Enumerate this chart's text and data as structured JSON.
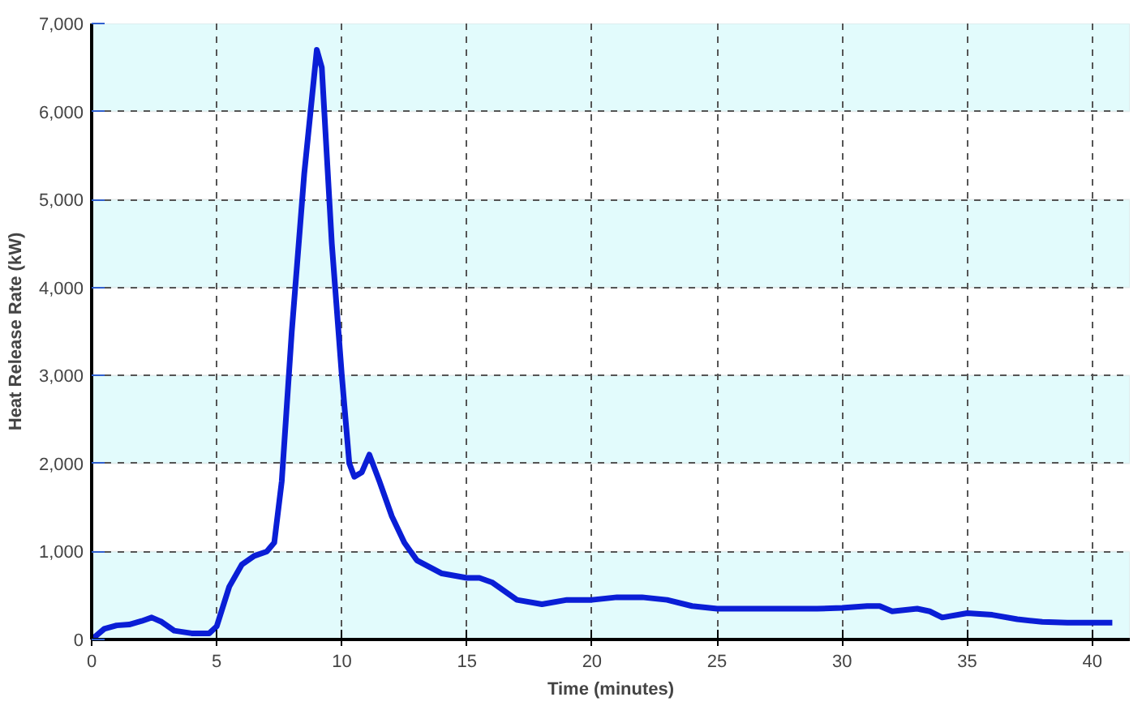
{
  "chart_data": {
    "type": "line",
    "xlabel": "Time (minutes)",
    "ylabel": "Heat Release Rate (kW)",
    "x": [
      0,
      0.5,
      1,
      1.5,
      2,
      2.4,
      2.8,
      3.3,
      4,
      4.7,
      5,
      5.5,
      6,
      6.5,
      7,
      7.3,
      7.6,
      8,
      8.5,
      9,
      9.2,
      9.6,
      10,
      10.3,
      10.5,
      10.8,
      11.1,
      11.5,
      12,
      12.5,
      13,
      14,
      15,
      15.5,
      16,
      17,
      18,
      19,
      20,
      21,
      22,
      23,
      24,
      25,
      27,
      29,
      30,
      31,
      31.5,
      32,
      33,
      33.5,
      34,
      35,
      36,
      37,
      38,
      39,
      40,
      40.8
    ],
    "series": [
      {
        "color": "#0a1ed6",
        "values": [
          0,
          120,
          160,
          170,
          210,
          250,
          200,
          100,
          70,
          70,
          150,
          600,
          850,
          950,
          1000,
          1100,
          1800,
          3500,
          5300,
          6700,
          6500,
          4500,
          3000,
          2000,
          1850,
          1900,
          2100,
          1800,
          1400,
          1100,
          900,
          750,
          700,
          700,
          650,
          450,
          400,
          450,
          450,
          480,
          480,
          450,
          380,
          350,
          350,
          350,
          360,
          380,
          380,
          320,
          350,
          320,
          250,
          300,
          280,
          230,
          200,
          190,
          190,
          190
        ]
      }
    ],
    "xlim": [
      0,
      41.5
    ],
    "xticks": [
      0,
      5,
      10,
      15,
      20,
      25,
      30,
      35,
      40
    ],
    "ylim": [
      0,
      7000
    ],
    "yticks": [
      0,
      {
        "value": 1000,
        "label": "1,000"
      },
      {
        "value": 2000,
        "label": "2,000"
      },
      {
        "value": 3000,
        "label": "3,000"
      },
      {
        "value": 4000,
        "label": "4,000"
      },
      {
        "value": 5000,
        "label": "5,000"
      },
      {
        "value": 6000,
        "label": "6,000"
      },
      {
        "value": 7000,
        "label": "7,000"
      }
    ],
    "bands": [
      {
        "axis": "y",
        "from": 0,
        "to": 1000,
        "color": "#e2fbfc"
      },
      {
        "axis": "y",
        "from": 2000,
        "to": 3000,
        "color": "#e2fbfc"
      },
      {
        "axis": "y",
        "from": 4000,
        "to": 5000,
        "color": "#e2fbfc"
      },
      {
        "axis": "y",
        "from": 6000,
        "to": 7000,
        "color": "#e2fbfc"
      }
    ],
    "grid": true,
    "line_style": "solid",
    "marker": "none"
  }
}
